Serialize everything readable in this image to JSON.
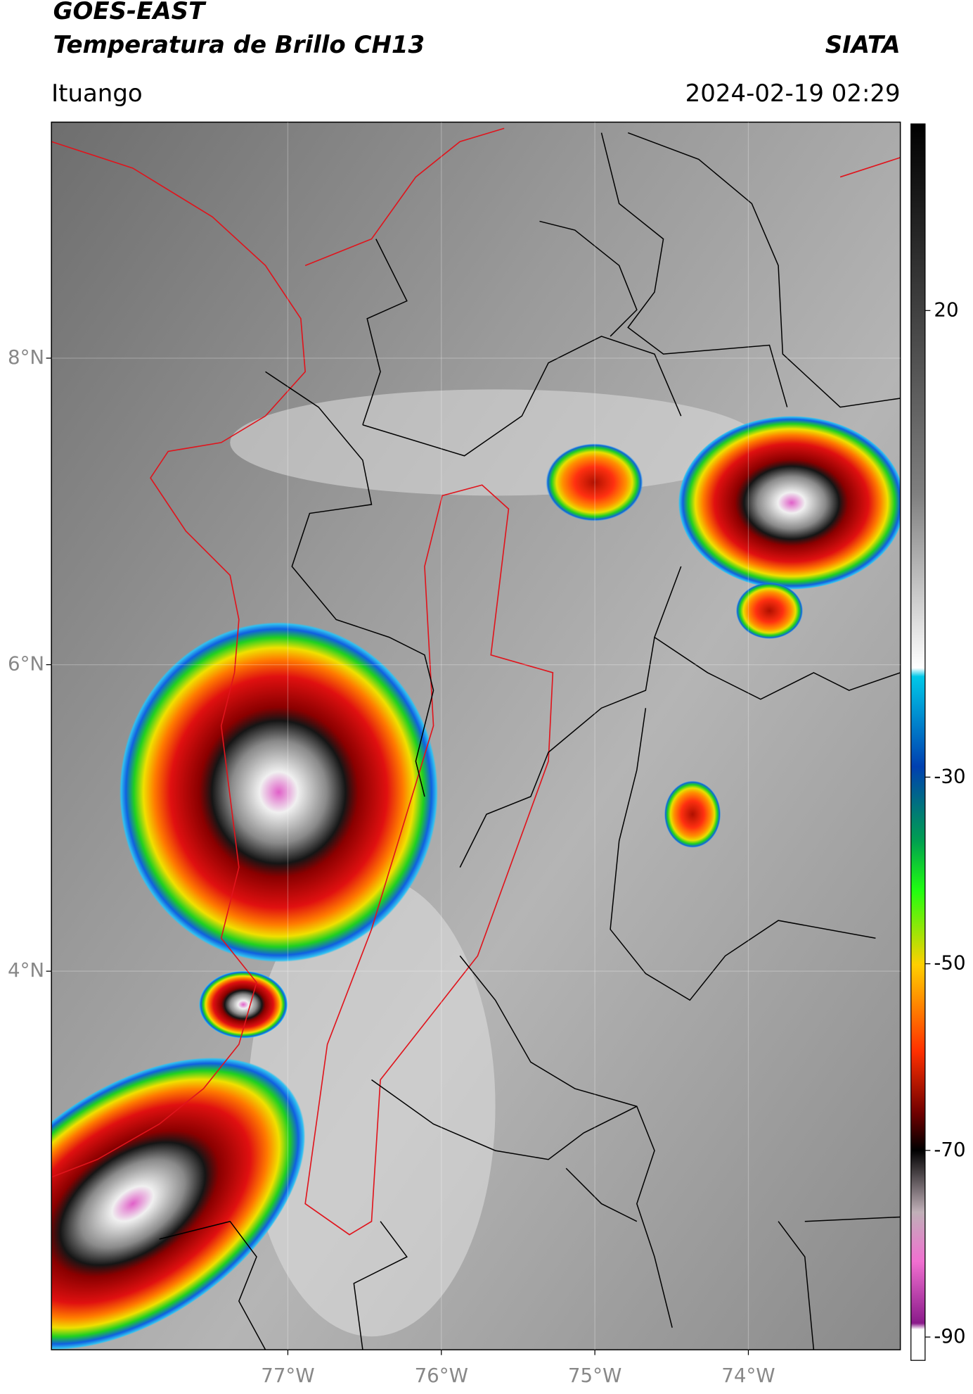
{
  "header": {
    "title": "GOES-EAST",
    "subtitle": "Temperatura de Brillo CH13",
    "org": "SIATA",
    "location": "Ituango",
    "timestamp": "2024-02-19 02:29"
  },
  "map": {
    "latlim": [
      1.53,
      9.54
    ],
    "lonlim": [
      -78.54,
      -73.01
    ],
    "latticks": [
      {
        "value": 8,
        "label": "8°N"
      },
      {
        "value": 6,
        "label": "6°N"
      },
      {
        "value": 4,
        "label": "4°N"
      }
    ],
    "lonticks": [
      {
        "value": -77,
        "label": "77°W"
      },
      {
        "value": -76,
        "label": "76°W"
      },
      {
        "value": -75,
        "label": "75°W"
      },
      {
        "value": -74,
        "label": "74°W"
      }
    ]
  },
  "colorbar": {
    "lim": [
      -92.5,
      40
    ],
    "ticks": [
      20,
      -30,
      -50,
      -70,
      -90
    ]
  }
}
